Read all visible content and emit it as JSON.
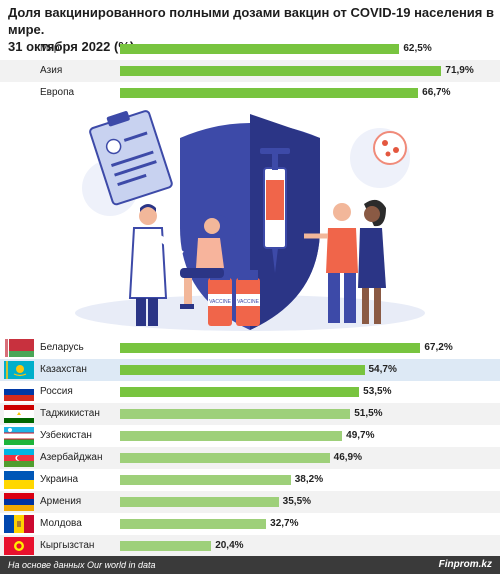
{
  "title_line1": "Доля вакцинированного полными дозами вакцин от COVID-19 населения в мире.",
  "title_line2": "31 октября 2022 (%)",
  "colors": {
    "bar_green": "#78c43f",
    "bar_light_green": "#9ed07a",
    "highlight_row": "#dde9f5",
    "footer_bg": "#3a3a3a"
  },
  "chart_data": [
    {
      "type": "bar",
      "orientation": "horizontal",
      "categories": [
        "Мир",
        "Азия",
        "Европа"
      ],
      "values": [
        62.5,
        71.9,
        66.7
      ],
      "value_labels": [
        "62,5%",
        "71,9%",
        "66,7%"
      ],
      "xlim": [
        0,
        100
      ]
    },
    {
      "type": "bar",
      "orientation": "horizontal",
      "categories": [
        "Беларусь",
        "Казахстан",
        "Россия",
        "Таджикистан",
        "Узбекистан",
        "Азербайджан",
        "Украина",
        "Армения",
        "Молдова",
        "Кыргызстан"
      ],
      "values": [
        67.2,
        54.7,
        53.5,
        51.5,
        49.7,
        46.9,
        38.2,
        35.5,
        32.7,
        20.4
      ],
      "value_labels": [
        "67,2%",
        "54,7%",
        "53,5%",
        "51,5%",
        "49,7%",
        "46,9%",
        "38,2%",
        "35,5%",
        "32,7%",
        "20,4%"
      ],
      "flags": [
        "belarus-flag",
        "kazakhstan-flag",
        "russia-flag",
        "tajikistan-flag",
        "uzbekistan-flag",
        "azerbaijan-flag",
        "ukraine-flag",
        "armenia-flag",
        "moldova-flag",
        "kyrgyzstan-flag"
      ],
      "highlighted": "Казахстан",
      "xlim": [
        0,
        100
      ]
    }
  ],
  "illustration": {
    "vial_label_1": "VACCINE",
    "vial_label_2": "VACCINE"
  },
  "footer": {
    "source": "На основе данных Our world in data",
    "brand": "Finprom.kz"
  }
}
